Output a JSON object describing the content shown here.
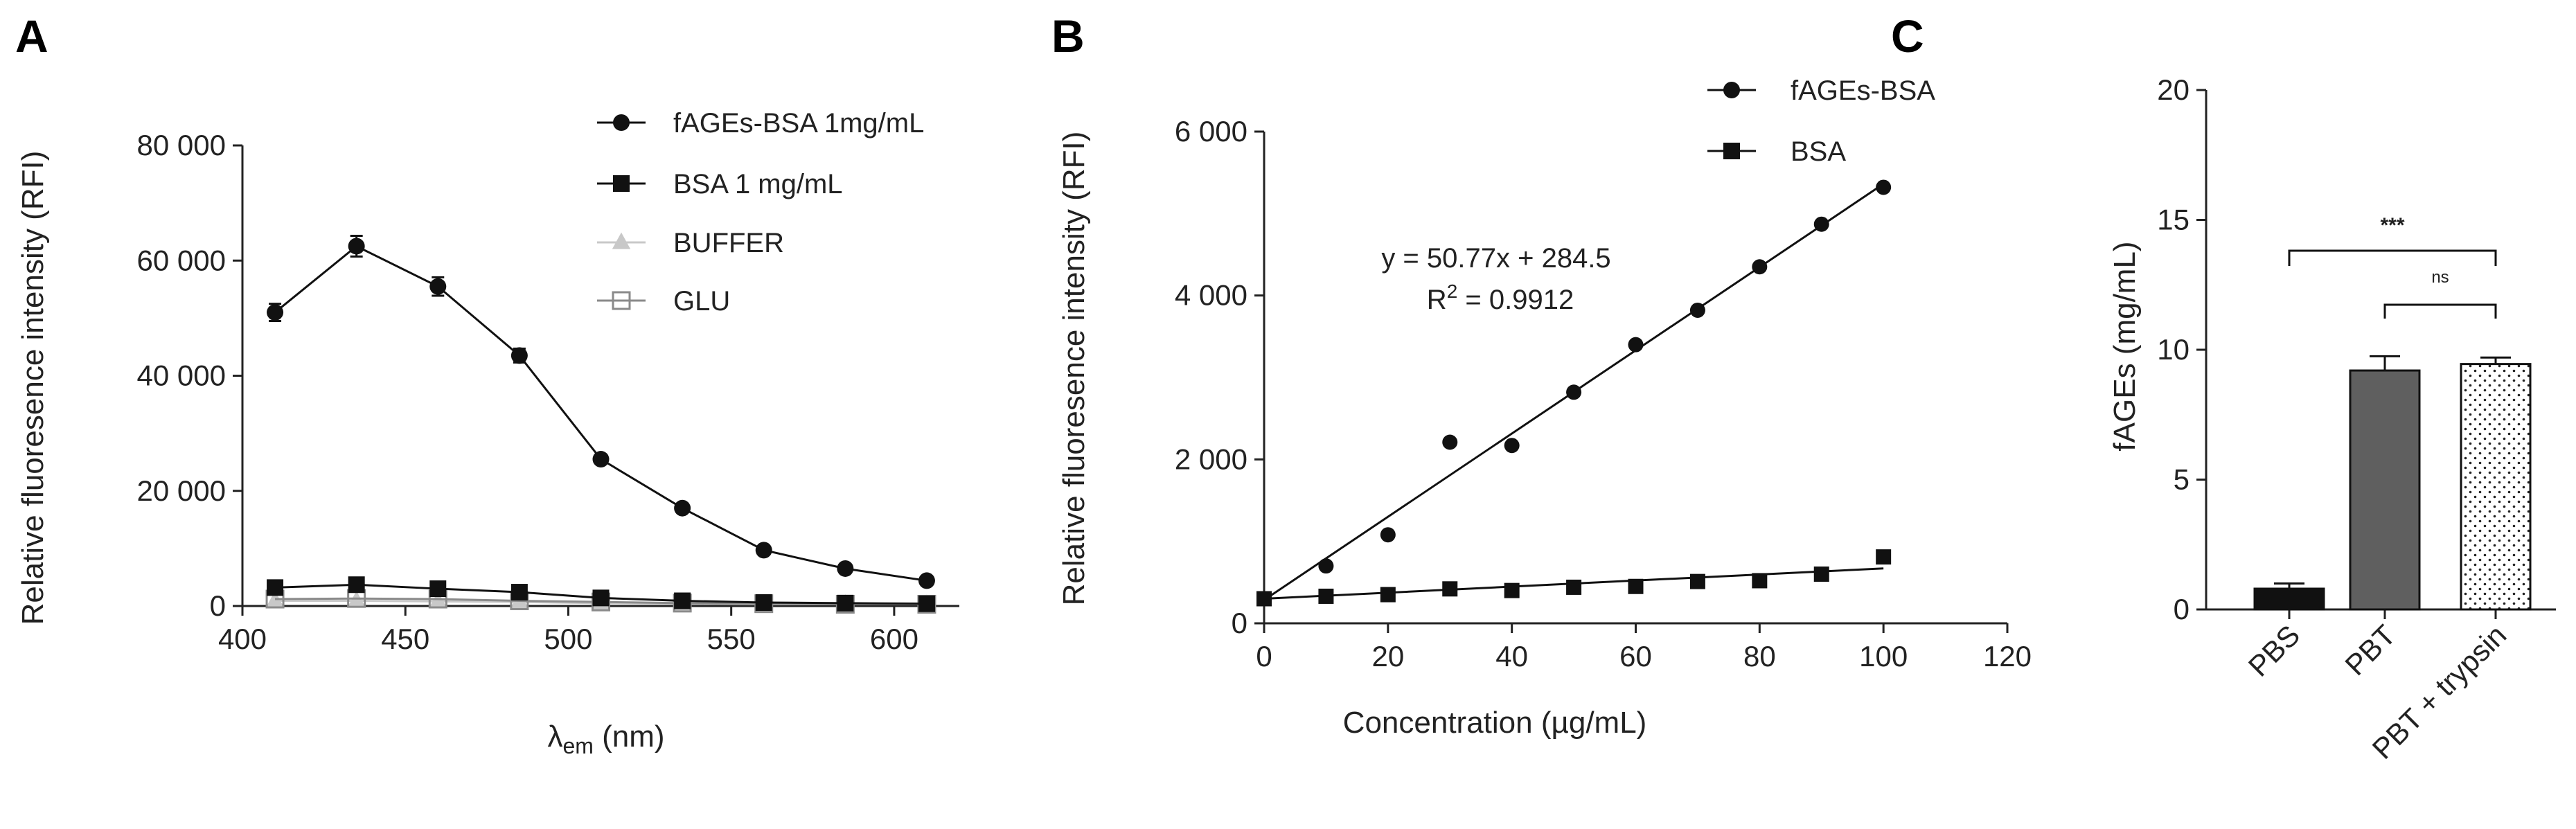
{
  "chart_data": [
    {
      "panel": "A",
      "type": "line",
      "xlabel_main": "λ",
      "xlabel_sub": "em",
      "xlabel_unit": " (nm)",
      "ylabel": "Relative fluoresence intensity (RFI)",
      "xlim": [
        400,
        620
      ],
      "ylim": [
        0,
        80000
      ],
      "xticks": [
        400,
        450,
        500,
        550,
        600
      ],
      "yticks": [
        0,
        20000,
        40000,
        60000,
        80000
      ],
      "ytick_labels": [
        "0",
        "20 000",
        "40 000",
        "60 000",
        "80 000"
      ],
      "x": [
        410,
        435,
        460,
        485,
        510,
        535,
        560,
        585,
        610
      ],
      "series": [
        {
          "name": "fAGEs-BSA 1mg/mL",
          "marker": "circle",
          "color": "#111111",
          "values": [
            51000,
            62500,
            55500,
            43500,
            25500,
            17000,
            9700,
            6500,
            4400
          ],
          "errors": [
            1500,
            1800,
            1600,
            1200,
            500,
            400,
            300,
            300,
            200
          ]
        },
        {
          "name": "BSA 1 mg/mL",
          "marker": "square",
          "color": "#111111",
          "values": [
            3200,
            3700,
            3000,
            2400,
            1400,
            900,
            600,
            500,
            400
          ],
          "errors": [
            300,
            300,
            300,
            200,
            150,
            100,
            100,
            100,
            100
          ]
        },
        {
          "name": "BUFFER",
          "marker": "triangle",
          "color": "#c8c8c8",
          "values": [
            900,
            900,
            800,
            700,
            500,
            400,
            300,
            300,
            300
          ],
          "errors": [
            0,
            0,
            0,
            0,
            0,
            0,
            0,
            0,
            0
          ]
        },
        {
          "name": "GLU",
          "marker": "open-square",
          "color": "#8a8a8a",
          "values": [
            1200,
            1300,
            1200,
            900,
            700,
            500,
            400,
            300,
            300
          ],
          "errors": [
            0,
            0,
            0,
            0,
            0,
            0,
            0,
            0,
            0
          ]
        }
      ]
    },
    {
      "panel": "B",
      "type": "scatter",
      "xlabel": "Concentration (µg/mL)",
      "ylabel": "Relative fluoresence intensity (RFI)",
      "xlim": [
        0,
        120
      ],
      "ylim": [
        0,
        6000
      ],
      "xticks": [
        0,
        20,
        40,
        60,
        80,
        100,
        120
      ],
      "yticks": [
        0,
        2000,
        4000,
        6000
      ],
      "ytick_labels": [
        "0",
        "2 000",
        "4 000",
        "6 000"
      ],
      "equation": "y = 50.77x + 284.5",
      "r2_prefix": "R",
      "r2_sup": "2",
      "r2_suffix": " = 0.9912",
      "series": [
        {
          "name": "fAGEs-BSA",
          "marker": "circle",
          "x": [
            0,
            10,
            20,
            30,
            40,
            50,
            60,
            70,
            80,
            90,
            100
          ],
          "values": [
            300,
            700,
            1080,
            2210,
            2170,
            2820,
            3400,
            3820,
            4350,
            4870,
            5320
          ],
          "fit": {
            "slope": 50.77,
            "intercept": 284.5
          }
        },
        {
          "name": "BSA",
          "marker": "square",
          "x": [
            0,
            10,
            20,
            30,
            40,
            50,
            60,
            70,
            80,
            90,
            100
          ],
          "values": [
            300,
            330,
            350,
            420,
            400,
            440,
            450,
            510,
            520,
            600,
            810
          ],
          "fit": {
            "slope": 3.7,
            "intercept": 300
          }
        }
      ]
    },
    {
      "panel": "C",
      "type": "bar",
      "ylabel": "fAGEs (mg/mL)",
      "ylim": [
        0,
        20
      ],
      "yticks": [
        0,
        5,
        10,
        15,
        20
      ],
      "categories": [
        "PBS",
        "PBT",
        "PBT + trypsin"
      ],
      "values": [
        0.8,
        9.2,
        9.45
      ],
      "errors": [
        0.2,
        0.55,
        0.25
      ],
      "colors": [
        "#111111",
        "#5f5f5f",
        "#ffffff"
      ],
      "significance": [
        {
          "from": 0,
          "to": 2,
          "label": "***"
        },
        {
          "from": 1,
          "to": 2,
          "label": "ns"
        }
      ]
    }
  ]
}
